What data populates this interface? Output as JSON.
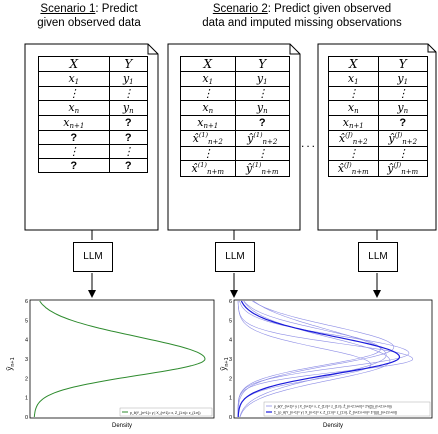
{
  "scenario1": {
    "label": "Scenario 1",
    "title_rest": ": Predict",
    "title_line2": "given observed data"
  },
  "scenario2": {
    "label": "Scenario 2",
    "title_rest": ": Predict given observed",
    "title_line2": "data and imputed missing observations"
  },
  "table": {
    "header_x": "X",
    "header_y": "Y",
    "unknown": "?",
    "ellipsis": "⋮",
    "between_tables": "..."
  },
  "llm_label": "LLM",
  "plot": {
    "ylabel": "ŷ",
    "ylabel_sub": "n+1",
    "xlabel": "Density",
    "yticks": [
      "0",
      "1",
      "2",
      "3",
      "4",
      "5",
      "6"
    ],
    "legend_left": "p_θ(Y_{n+1}= y | X_{n+1}= x, Z_{1:n}= z_{1:n})",
    "legend_right_1": "p_θ(Y_{n+1}= y | X_{n+1}= x, Z_{1:n}= z_{1:n}, Ẑ_{n+2:n+m}= ẑ^{(j)}_{n+2:n+m})",
    "legend_right_2": "Σ_j p_θ(Y_{n+1}= y | X_{n+1}= x, Z_{1:n}= z_{1:n}, Ẑ_{n+2:n+m}= ẑ^{(j)}_{n+2:n+m})",
    "colors": {
      "green": "#2e8b2e",
      "blue": "#1a1adb",
      "faint_blue": "#8f8fe6"
    }
  }
}
